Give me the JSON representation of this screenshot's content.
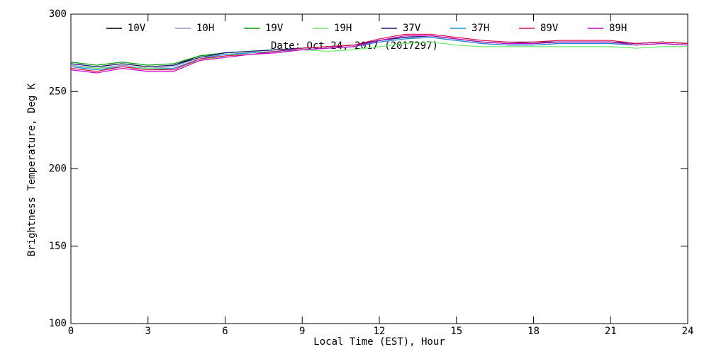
{
  "chart_data": {
    "type": "line",
    "annotation": "Date: Oct 24, 2017 (2017297)",
    "xlabel": "Local Time (EST), Hour",
    "ylabel": "Brightness Temperature, Deg K",
    "xlim": [
      0,
      24
    ],
    "xticks": [
      0,
      3,
      6,
      9,
      12,
      15,
      18,
      21,
      24
    ],
    "ylim": [
      100,
      300
    ],
    "yticks": [
      100,
      150,
      200,
      250,
      300
    ],
    "x": [
      0,
      1,
      2,
      3,
      4,
      5,
      6,
      7,
      8,
      9,
      10,
      11,
      12,
      13,
      14,
      15,
      16,
      17,
      18,
      19,
      20,
      21,
      22,
      23,
      24
    ],
    "series": [
      {
        "name": "10V",
        "color": "#000000",
        "values": [
          268,
          266,
          268,
          266,
          267,
          273,
          275,
          276,
          277,
          278,
          279,
          280,
          283,
          285,
          286,
          284,
          282,
          281,
          281,
          282,
          282,
          282,
          281,
          282,
          281
        ]
      },
      {
        "name": "10H",
        "color": "#9a8fd0",
        "values": [
          267,
          265,
          267,
          265,
          266,
          272,
          274,
          275,
          276,
          277,
          278,
          279,
          282,
          284,
          285,
          283,
          281,
          280,
          280,
          281,
          281,
          281,
          280,
          281,
          280
        ]
      },
      {
        "name": "19V",
        "color": "#00a000",
        "values": [
          269,
          267,
          269,
          267,
          268,
          273,
          275,
          276,
          277,
          278,
          279,
          280,
          283,
          285,
          286,
          284,
          282,
          281,
          281,
          282,
          282,
          282,
          281,
          282,
          281
        ]
      },
      {
        "name": "19H",
        "color": "#66ee66",
        "values": [
          266,
          265,
          266,
          265,
          265,
          270,
          273,
          275,
          276,
          277,
          276,
          277,
          279,
          281,
          282,
          280,
          279,
          279,
          279,
          279,
          279,
          279,
          278,
          279,
          279
        ]
      },
      {
        "name": "37V",
        "color": "#1a1a80",
        "values": [
          268,
          266,
          268,
          266,
          267,
          272,
          275,
          276,
          277,
          278,
          279,
          280,
          283,
          285,
          286,
          284,
          282,
          281,
          282,
          282,
          282,
          282,
          281,
          282,
          281
        ]
      },
      {
        "name": "37H",
        "color": "#1a8cd8",
        "values": [
          266,
          264,
          266,
          264,
          265,
          271,
          274,
          275,
          276,
          277,
          278,
          279,
          282,
          284,
          285,
          283,
          281,
          280,
          280,
          281,
          281,
          281,
          280,
          281,
          280
        ]
      },
      {
        "name": "89V",
        "color": "#e0104a",
        "values": [
          265,
          263,
          266,
          264,
          264,
          271,
          273,
          274,
          276,
          278,
          279,
          280,
          284,
          287,
          287,
          285,
          283,
          282,
          282,
          283,
          283,
          283,
          281,
          282,
          281
        ]
      },
      {
        "name": "89H",
        "color": "#cc00cc",
        "values": [
          264,
          262,
          265,
          263,
          263,
          270,
          272,
          274,
          275,
          277,
          278,
          279,
          283,
          286,
          286,
          284,
          282,
          281,
          281,
          282,
          282,
          282,
          280,
          281,
          280
        ]
      }
    ]
  }
}
